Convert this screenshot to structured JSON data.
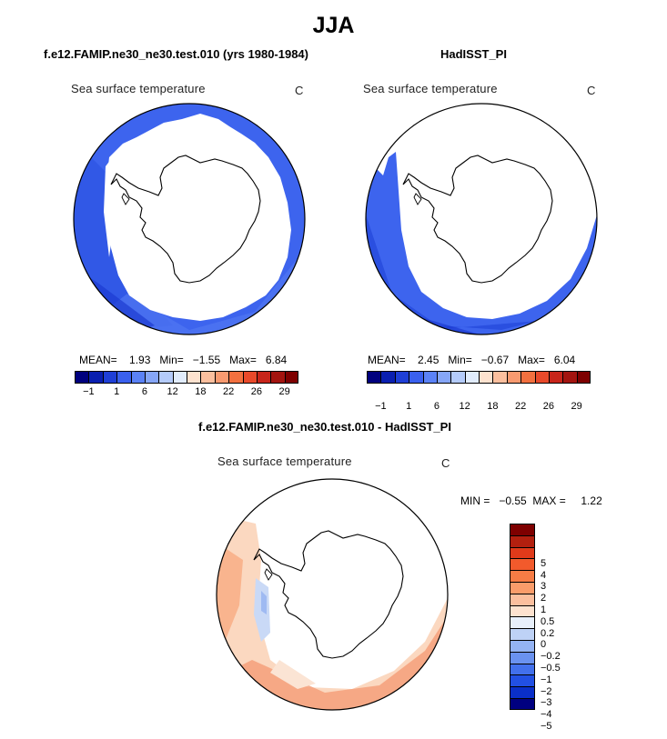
{
  "figure": {
    "title": "JJA"
  },
  "panels": [
    {
      "title": "f.e12.FAMIP.ne30_ne30.test.010 (yrs 1980-1984)",
      "variable": "Sea surface temperature",
      "units": "C",
      "stats": {
        "mean_label": "MEAN=",
        "mean": "1.93",
        "min_label": "Min=",
        "min": "−1.55",
        "max_label": "Max=",
        "max": "6.84"
      }
    },
    {
      "title": "HadISST_PI",
      "variable": "Sea surface temperature",
      "units": "C",
      "stats": {
        "mean_label": "MEAN=",
        "mean": "2.45",
        "min_label": "Min=",
        "min": "−0.67",
        "max_label": "Max=",
        "max": "6.04"
      }
    }
  ],
  "diff_panel": {
    "title": "f.e12.FAMIP.ne30_ne30.test.010 - HadISST_PI",
    "variable": "Sea surface temperature",
    "units": "C",
    "minmax": "MIN =   −0.55  MAX =     1.22"
  },
  "colorbar_sst": {
    "colors": [
      "#00007e",
      "#0a1fb0",
      "#1f3fd6",
      "#3a60ee",
      "#5b82f6",
      "#86a6f7",
      "#b4cbfa",
      "#e1ecfc",
      "#fde2cf",
      "#fbbf9e",
      "#f89a70",
      "#f2703f",
      "#e8492a",
      "#c8251a",
      "#a3140f",
      "#7e0000"
    ],
    "tick_labels": [
      "−1",
      "1",
      "6",
      "12",
      "18",
      "22",
      "26",
      "29"
    ]
  },
  "colorbar_diff": {
    "colors": [
      "#7e0000",
      "#b3200f",
      "#e03a1a",
      "#f25a2c",
      "#f77c45",
      "#fa9c6a",
      "#fbbf9e",
      "#fde2cf",
      "#e8f0fb",
      "#bed2f6",
      "#94b3f3",
      "#6a92f0",
      "#4270ec",
      "#2250e4",
      "#0a2fc9",
      "#000080"
    ],
    "labels": [
      "5",
      "4",
      "3",
      "2",
      "1",
      "0.5",
      "0.2",
      "0",
      "−0.2",
      "−0.5",
      "−1",
      "−2",
      "−3",
      "−4",
      "−5"
    ]
  }
}
